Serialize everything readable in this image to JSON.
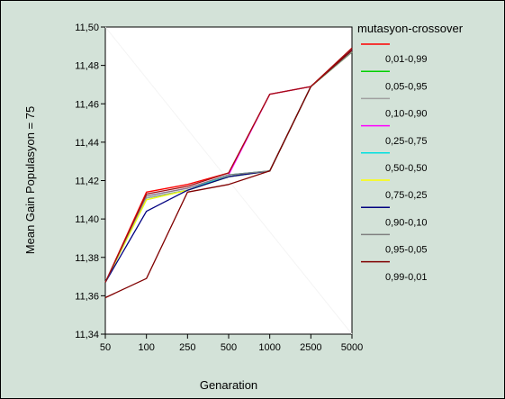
{
  "colors": {
    "background": "#d3e2d8",
    "plot_area": "#ffffff",
    "frame": "#000000"
  },
  "chart_data": {
    "type": "line",
    "title": "",
    "xlabel": "Genaration",
    "ylabel": "Mean Gain   Populasyon = 75",
    "categories": [
      "50",
      "100",
      "250",
      "500",
      "1000",
      "2500",
      "5000"
    ],
    "y_ticks": [
      "11,34",
      "11,36",
      "11,38",
      "11,40",
      "11,42",
      "11,44",
      "11,46",
      "11,48",
      "11,50"
    ],
    "ylim": [
      11.34,
      11.5
    ],
    "grid": false,
    "legend": {
      "title": "mutasyon-crossover",
      "placement": "right",
      "entries": [
        {
          "label": "",
          "color": "#ff0000"
        },
        {
          "label": "0,01-0,99",
          "color": "#00d000"
        },
        {
          "label": "0,05-0,95",
          "color": "#a0a0a0"
        },
        {
          "label": "0,10-0,90",
          "color": "#ff00ff"
        },
        {
          "label": "0,25-0,75",
          "color": "#00e0e0"
        },
        {
          "label": "0,50-0,50",
          "color": "#ffff00"
        },
        {
          "label": "0,75-0,25",
          "color": "#000080"
        },
        {
          "label": "0,90-0,10",
          "color": "#808080"
        },
        {
          "label": "0,95-0,05",
          "color": "#800000"
        },
        {
          "label": "0,99-0,01",
          "color": ""
        }
      ]
    },
    "series": [
      {
        "color": "#ff0000",
        "values": [
          11.367,
          11.414,
          11.418,
          11.424,
          11.465,
          11.469,
          11.489
        ]
      },
      {
        "color": "#00d000",
        "values": [
          11.367,
          11.411,
          11.415,
          11.422,
          11.425,
          11.469,
          11.487
        ]
      },
      {
        "color": "#a0a0a0",
        "values": [
          11.367,
          11.411,
          11.415,
          11.423,
          11.425,
          11.469,
          11.487
        ]
      },
      {
        "color": "#ff00ff",
        "values": [
          11.367,
          11.412,
          11.416,
          11.423,
          11.465,
          11.469,
          11.488
        ]
      },
      {
        "color": "#00e0e0",
        "values": [
          11.367,
          11.41,
          11.415,
          11.423,
          11.425,
          11.469,
          11.487
        ]
      },
      {
        "color": "#ffff00",
        "values": [
          11.367,
          11.41,
          11.415,
          11.422,
          11.425,
          11.469,
          11.487
        ]
      },
      {
        "color": "#000080",
        "values": [
          11.367,
          11.404,
          11.415,
          11.422,
          11.425,
          11.469,
          11.488
        ]
      },
      {
        "color": "#808080",
        "values": [
          11.367,
          11.412,
          11.416,
          11.423,
          11.425,
          11.469,
          11.487
        ]
      },
      {
        "color": "#800000",
        "values": [
          11.359,
          11.369,
          11.414,
          11.418,
          11.425,
          11.469,
          11.488
        ]
      },
      {
        "color": "#a01010",
        "values": [
          11.367,
          11.413,
          11.417,
          11.424,
          11.465,
          11.469,
          11.489
        ]
      }
    ]
  }
}
